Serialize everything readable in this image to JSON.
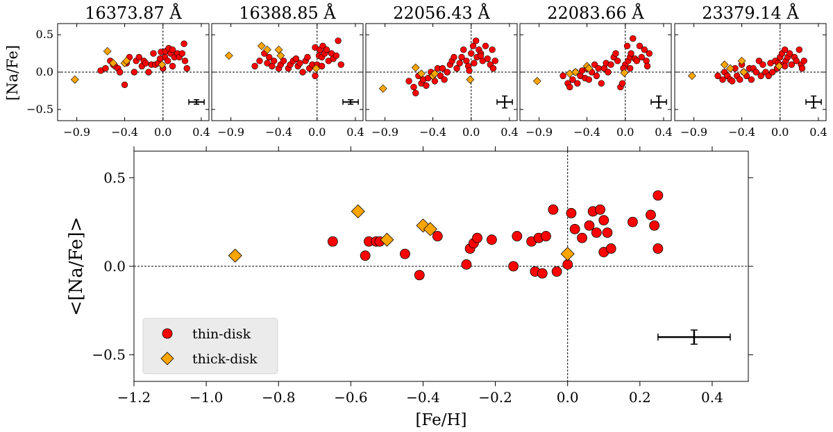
{
  "chart_data": {
    "type": "scatter",
    "panels": [
      {
        "title": "16373.87 Å",
        "thin": [
          [
            -0.65,
            0.02
          ],
          [
            -0.6,
            0.05
          ],
          [
            -0.55,
            0.15
          ],
          [
            -0.52,
            0.1
          ],
          [
            -0.5,
            0.08
          ],
          [
            -0.47,
            0.05
          ],
          [
            -0.45,
            0.0
          ],
          [
            -0.4,
            -0.17
          ],
          [
            -0.38,
            0.12
          ],
          [
            -0.35,
            0.2
          ],
          [
            -0.3,
            0.0
          ],
          [
            -0.28,
            0.15
          ],
          [
            -0.25,
            0.2
          ],
          [
            -0.22,
            0.08
          ],
          [
            -0.2,
            0.15
          ],
          [
            -0.18,
            0.12
          ],
          [
            -0.15,
            0.0
          ],
          [
            -0.12,
            0.1
          ],
          [
            -0.1,
            0.25
          ],
          [
            -0.08,
            0.1
          ],
          [
            -0.05,
            0.12
          ],
          [
            -0.02,
            0.27
          ],
          [
            0.0,
            0.05
          ],
          [
            0.02,
            0.2
          ],
          [
            0.03,
            0.28
          ],
          [
            0.05,
            0.15
          ],
          [
            0.06,
            0.32
          ],
          [
            0.08,
            0.25
          ],
          [
            0.1,
            0.3
          ],
          [
            0.12,
            0.2
          ],
          [
            0.15,
            0.25
          ],
          [
            0.17,
            0.2
          ],
          [
            0.2,
            0.25
          ],
          [
            0.22,
            0.38
          ],
          [
            0.23,
            0.15
          ],
          [
            0.25,
            0.05
          ],
          [
            -0.03,
            0.18
          ],
          [
            0.1,
            0.08
          ]
        ],
        "thick": [
          [
            -0.92,
            -0.1
          ],
          [
            -0.58,
            0.28
          ],
          [
            -0.52,
            0.12
          ],
          [
            -0.4,
            0.12
          ],
          [
            -0.38,
            0.15
          ],
          [
            -0.01,
            0.1
          ]
        ],
        "err": {
          "x": 0.35,
          "y": -0.4,
          "xerr": 0.08,
          "yerr": 0.03
        }
      },
      {
        "title": "16388.85 Å",
        "thin": [
          [
            -0.65,
            0.08
          ],
          [
            -0.6,
            0.15
          ],
          [
            -0.55,
            0.25
          ],
          [
            -0.52,
            0.12
          ],
          [
            -0.5,
            0.2
          ],
          [
            -0.47,
            0.08
          ],
          [
            -0.45,
            0.15
          ],
          [
            -0.4,
            0.05
          ],
          [
            -0.38,
            0.1
          ],
          [
            -0.35,
            0.15
          ],
          [
            -0.3,
            0.05
          ],
          [
            -0.28,
            0.1
          ],
          [
            -0.25,
            0.15
          ],
          [
            -0.22,
            0.18
          ],
          [
            -0.2,
            0.08
          ],
          [
            -0.18,
            0.12
          ],
          [
            -0.15,
            0.0
          ],
          [
            -0.12,
            0.15
          ],
          [
            -0.1,
            0.2
          ],
          [
            -0.08,
            0.05
          ],
          [
            -0.05,
            0.1
          ],
          [
            -0.02,
            0.33
          ],
          [
            0.0,
            0.1
          ],
          [
            0.02,
            0.22
          ],
          [
            0.03,
            0.3
          ],
          [
            0.05,
            0.2
          ],
          [
            0.06,
            0.35
          ],
          [
            0.08,
            0.25
          ],
          [
            0.1,
            0.3
          ],
          [
            0.12,
            0.15
          ],
          [
            0.15,
            0.25
          ],
          [
            0.17,
            0.18
          ],
          [
            0.2,
            0.22
          ],
          [
            0.22,
            0.42
          ],
          [
            0.25,
            0.1
          ],
          [
            0.05,
            0.08
          ],
          [
            -0.02,
            -0.05
          ]
        ],
        "thick": [
          [
            -0.92,
            0.22
          ],
          [
            -0.58,
            0.35
          ],
          [
            -0.52,
            0.3
          ],
          [
            -0.4,
            0.3
          ],
          [
            -0.38,
            0.22
          ],
          [
            -0.01,
            0.05
          ]
        ],
        "err": {
          "x": 0.35,
          "y": -0.4,
          "xerr": 0.08,
          "yerr": 0.03
        }
      },
      {
        "title": "22056.43 Å",
        "thin": [
          [
            -0.65,
            -0.12
          ],
          [
            -0.6,
            -0.2
          ],
          [
            -0.58,
            -0.28
          ],
          [
            -0.55,
            -0.05
          ],
          [
            -0.52,
            -0.15
          ],
          [
            -0.5,
            -0.1
          ],
          [
            -0.47,
            -0.18
          ],
          [
            -0.45,
            -0.08
          ],
          [
            -0.42,
            0.0
          ],
          [
            -0.4,
            -0.05
          ],
          [
            -0.38,
            -0.12
          ],
          [
            -0.35,
            0.05
          ],
          [
            -0.32,
            -0.05
          ],
          [
            -0.3,
            0.05
          ],
          [
            -0.28,
            -0.1
          ],
          [
            -0.25,
            0.0
          ],
          [
            -0.22,
            0.1
          ],
          [
            -0.2,
            0.15
          ],
          [
            -0.18,
            0.2
          ],
          [
            -0.15,
            0.05
          ],
          [
            -0.12,
            0.12
          ],
          [
            -0.1,
            0.2
          ],
          [
            -0.08,
            0.3
          ],
          [
            -0.05,
            0.15
          ],
          [
            -0.03,
            0.08
          ],
          [
            0.0,
            0.25
          ],
          [
            0.02,
            0.35
          ],
          [
            0.03,
            0.12
          ],
          [
            0.05,
            0.42
          ],
          [
            0.06,
            0.2
          ],
          [
            0.08,
            0.3
          ],
          [
            0.1,
            0.25
          ],
          [
            0.12,
            0.15
          ],
          [
            0.15,
            0.35
          ],
          [
            0.17,
            0.18
          ],
          [
            0.2,
            0.1
          ],
          [
            0.22,
            0.3
          ],
          [
            0.23,
            0.05
          ],
          [
            0.25,
            0.15
          ],
          [
            -0.02,
            0.02
          ],
          [
            0.1,
            0.22
          ]
        ],
        "thick": [
          [
            -0.92,
            -0.22
          ],
          [
            -0.58,
            0.06
          ],
          [
            -0.52,
            -0.02
          ],
          [
            -0.4,
            -0.05
          ],
          [
            -0.38,
            -0.02
          ],
          [
            -0.01,
            -0.1
          ]
        ],
        "err": {
          "x": 0.35,
          "y": -0.4,
          "xerr": 0.08,
          "yerr": 0.08
        }
      },
      {
        "title": "22083.66 Å",
        "thin": [
          [
            -0.65,
            -0.05
          ],
          [
            -0.6,
            -0.15
          ],
          [
            -0.58,
            -0.2
          ],
          [
            -0.55,
            -0.1
          ],
          [
            -0.52,
            0.0
          ],
          [
            -0.5,
            -0.15
          ],
          [
            -0.47,
            -0.05
          ],
          [
            -0.45,
            0.02
          ],
          [
            -0.42,
            -0.08
          ],
          [
            -0.4,
            0.05
          ],
          [
            -0.38,
            -0.1
          ],
          [
            -0.35,
            0.0
          ],
          [
            -0.32,
            0.1
          ],
          [
            -0.3,
            -0.05
          ],
          [
            -0.28,
            0.05
          ],
          [
            -0.25,
            -0.15
          ],
          [
            -0.22,
            0.05
          ],
          [
            -0.2,
            0.12
          ],
          [
            -0.18,
            0.0
          ],
          [
            -0.15,
            0.1
          ],
          [
            -0.12,
            0.2
          ],
          [
            -0.1,
            0.25
          ],
          [
            -0.08,
            0.15
          ],
          [
            -0.05,
            -0.2
          ],
          [
            -0.03,
            -0.15
          ],
          [
            0.0,
            0.1
          ],
          [
            0.02,
            0.35
          ],
          [
            0.03,
            0.15
          ],
          [
            0.05,
            0.2
          ],
          [
            0.06,
            0.25
          ],
          [
            0.08,
            0.45
          ],
          [
            0.1,
            0.18
          ],
          [
            0.12,
            0.15
          ],
          [
            0.15,
            0.35
          ],
          [
            0.17,
            0.2
          ],
          [
            0.2,
            0.3
          ],
          [
            0.22,
            0.15
          ],
          [
            0.23,
            0.08
          ],
          [
            0.25,
            0.25
          ],
          [
            0.05,
            0.05
          ],
          [
            -0.02,
            0.05
          ]
        ],
        "thick": [
          [
            -0.92,
            -0.12
          ],
          [
            -0.58,
            -0.02
          ],
          [
            -0.52,
            0.0
          ],
          [
            -0.4,
            0.08
          ],
          [
            -0.38,
            0.05
          ],
          [
            -0.01,
            -0.01
          ]
        ],
        "err": {
          "x": 0.35,
          "y": -0.4,
          "xerr": 0.08,
          "yerr": 0.08
        }
      },
      {
        "title": "23379.14 Å",
        "thin": [
          [
            -0.65,
            -0.05
          ],
          [
            -0.6,
            -0.1
          ],
          [
            -0.58,
            0.0
          ],
          [
            -0.55,
            -0.05
          ],
          [
            -0.52,
            -0.1
          ],
          [
            -0.5,
            -0.12
          ],
          [
            -0.47,
            0.05
          ],
          [
            -0.45,
            -0.05
          ],
          [
            -0.42,
            -0.1
          ],
          [
            -0.4,
            0.1
          ],
          [
            -0.38,
            0.0
          ],
          [
            -0.35,
            -0.05
          ],
          [
            -0.32,
            0.05
          ],
          [
            -0.3,
            -0.1
          ],
          [
            -0.28,
            0.05
          ],
          [
            -0.25,
            0.0
          ],
          [
            -0.22,
            0.15
          ],
          [
            -0.2,
            -0.05
          ],
          [
            -0.18,
            0.1
          ],
          [
            -0.15,
            0.0
          ],
          [
            -0.12,
            -0.05
          ],
          [
            -0.1,
            0.12
          ],
          [
            -0.08,
            0.0
          ],
          [
            -0.05,
            0.15
          ],
          [
            -0.03,
            0.05
          ],
          [
            0.0,
            0.2
          ],
          [
            0.02,
            0.25
          ],
          [
            0.03,
            0.1
          ],
          [
            0.05,
            0.3
          ],
          [
            0.06,
            0.15
          ],
          [
            0.08,
            0.2
          ],
          [
            0.1,
            0.25
          ],
          [
            0.12,
            0.1
          ],
          [
            0.15,
            0.2
          ],
          [
            0.17,
            0.15
          ],
          [
            0.2,
            0.3
          ],
          [
            0.22,
            0.1
          ],
          [
            0.23,
            0.05
          ],
          [
            0.25,
            0.15
          ],
          [
            0.05,
            0.08
          ],
          [
            -0.02,
            0.12
          ]
        ],
        "thick": [
          [
            -0.92,
            -0.05
          ],
          [
            -0.58,
            0.1
          ],
          [
            -0.52,
            0.05
          ],
          [
            -0.4,
            0.15
          ],
          [
            -0.38,
            0.0
          ],
          [
            -0.01,
            0.08
          ]
        ],
        "err": {
          "x": 0.35,
          "y": -0.4,
          "xerr": 0.08,
          "yerr": 0.08
        }
      }
    ],
    "panel_xticks": [
      -0.9,
      -0.4,
      0.0,
      0.4
    ],
    "panel_xtick_labels": [
      "−0.9",
      "−0.4",
      "0.0",
      "0.4"
    ],
    "panel_xlim": [
      -1.1,
      0.48
    ],
    "panel_yticks": [
      0.5,
      0.0,
      -0.5
    ],
    "panel_ytick_labels": [
      "0.5",
      "0.0",
      "−0.5"
    ],
    "panel_ylim": [
      -0.65,
      0.65
    ],
    "panel_ylabel": "[Na/Fe]",
    "main": {
      "xlabel": "[Fe/H]",
      "ylabel": "<[Na/Fe]>",
      "xlim": [
        -1.2,
        0.5
      ],
      "ylim": [
        -0.65,
        0.65
      ],
      "xticks": [
        -1.2,
        -1.0,
        -0.8,
        -0.6,
        -0.4,
        -0.2,
        0.0,
        0.2,
        0.4
      ],
      "xtick_labels": [
        "−1.2",
        "−1.0",
        "−0.8",
        "−0.6",
        "−0.4",
        "−0.2",
        "0.0",
        "0.2",
        "0.4"
      ],
      "yticks": [
        0.5,
        0.0,
        -0.5
      ],
      "ytick_labels": [
        "0.5",
        "0.0",
        "−0.5"
      ],
      "thin": [
        [
          -0.65,
          0.14
        ],
        [
          -0.56,
          0.06
        ],
        [
          -0.55,
          0.14
        ],
        [
          -0.53,
          0.14
        ],
        [
          -0.52,
          0.14
        ],
        [
          -0.45,
          0.07
        ],
        [
          -0.41,
          -0.05
        ],
        [
          -0.36,
          0.17
        ],
        [
          -0.28,
          0.01
        ],
        [
          -0.27,
          0.1
        ],
        [
          -0.26,
          0.13
        ],
        [
          -0.25,
          0.16
        ],
        [
          -0.21,
          0.15
        ],
        [
          -0.15,
          0.0
        ],
        [
          -0.14,
          0.17
        ],
        [
          -0.1,
          0.14
        ],
        [
          -0.09,
          -0.03
        ],
        [
          -0.08,
          0.16
        ],
        [
          -0.07,
          -0.04
        ],
        [
          -0.06,
          0.17
        ],
        [
          -0.04,
          0.32
        ],
        [
          -0.03,
          -0.03
        ],
        [
          0.0,
          0.01
        ],
        [
          0.01,
          0.3
        ],
        [
          0.02,
          0.21
        ],
        [
          0.04,
          0.16
        ],
        [
          0.06,
          0.23
        ],
        [
          0.07,
          0.31
        ],
        [
          0.08,
          0.19
        ],
        [
          0.09,
          0.32
        ],
        [
          0.1,
          0.08
        ],
        [
          0.1,
          0.26
        ],
        [
          0.11,
          0.19
        ],
        [
          0.12,
          0.1
        ],
        [
          0.18,
          0.25
        ],
        [
          0.23,
          0.29
        ],
        [
          0.24,
          0.23
        ],
        [
          0.25,
          0.1
        ],
        [
          0.25,
          0.4
        ]
      ],
      "thick": [
        [
          -0.92,
          0.06
        ],
        [
          -0.58,
          0.31
        ],
        [
          -0.5,
          0.15
        ],
        [
          -0.4,
          0.23
        ],
        [
          -0.38,
          0.21
        ],
        [
          0.0,
          0.07
        ]
      ],
      "err": {
        "x": 0.35,
        "y": -0.4,
        "xerr": 0.1,
        "yerr": 0.04
      }
    },
    "legend": {
      "position": "lower-left",
      "entries": [
        {
          "label": "thin-disk",
          "marker": "circle",
          "color": "#ff0000"
        },
        {
          "label": "thick-disk",
          "marker": "diamond",
          "color": "#ffa500"
        }
      ]
    },
    "colors": {
      "thin": "#ff0000",
      "thick": "#ffa500",
      "edge": "#000000"
    }
  }
}
